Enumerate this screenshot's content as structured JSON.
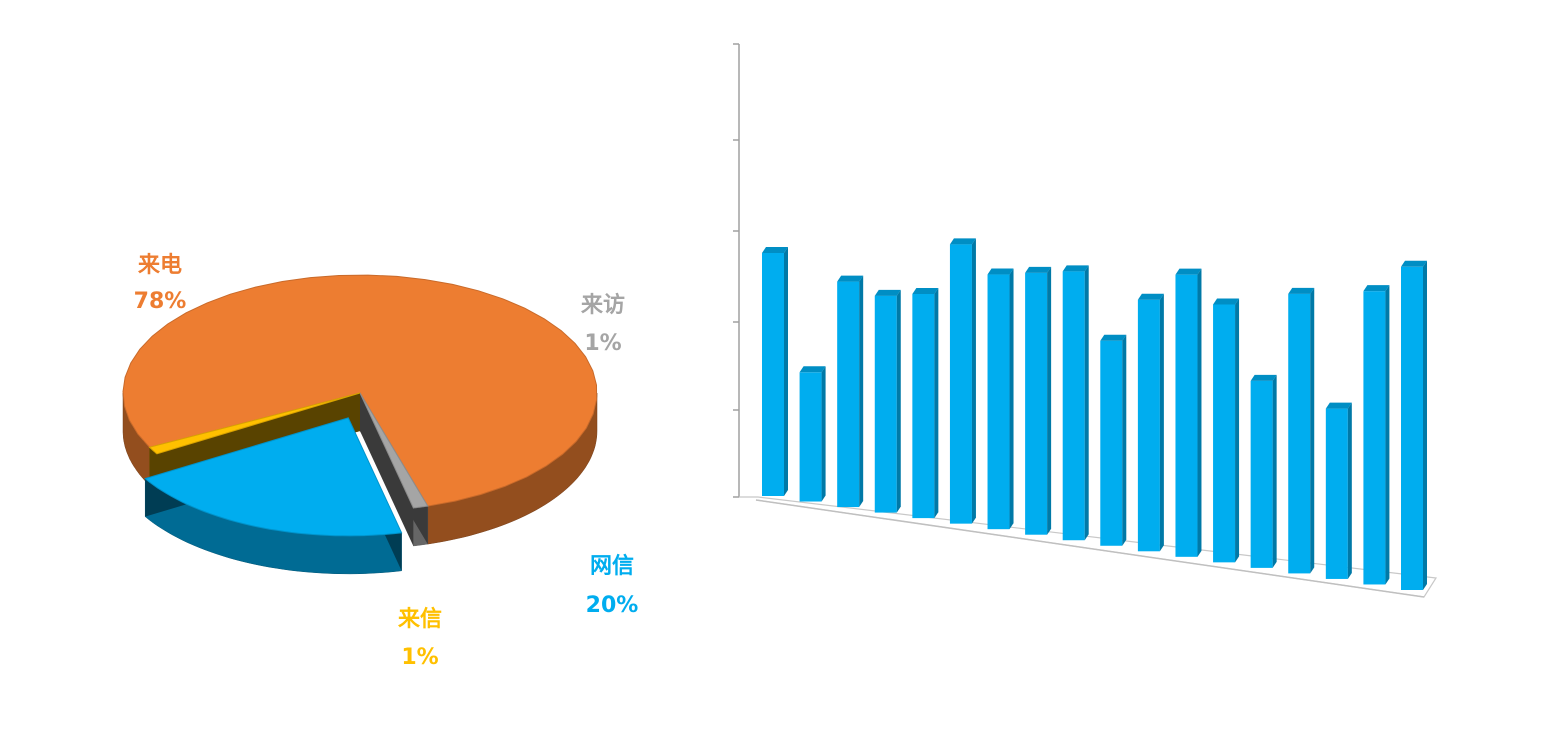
{
  "chart_data": [
    {
      "type": "pie",
      "style": "3d-exploded",
      "slices": [
        {
          "label": "来电",
          "value": 78,
          "display": "78%",
          "color": "#ED7D31"
        },
        {
          "label": "来访",
          "value": 1,
          "display": "1%",
          "color": "#A5A5A5"
        },
        {
          "label": "网信",
          "value": 20,
          "display": "20%",
          "color": "#00ADEF"
        },
        {
          "label": "来信",
          "value": 1,
          "display": "1%",
          "color": "#FFC000"
        }
      ],
      "exploded": "网信"
    },
    {
      "type": "bar",
      "style": "3d-column",
      "color": "#00ADEF",
      "values": [
        3.0,
        1.6,
        2.8,
        2.7,
        2.8,
        3.5,
        3.2,
        3.3,
        3.4,
        2.6,
        3.2,
        3.6,
        3.3,
        2.4,
        3.6,
        2.2,
        3.8,
        4.2
      ],
      "ylim": [
        0,
        5
      ],
      "grid": false,
      "axis_labels_shown": false
    }
  ]
}
